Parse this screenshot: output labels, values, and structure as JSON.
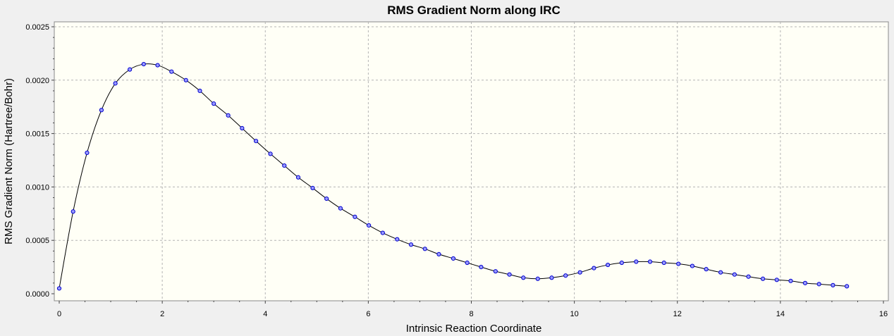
{
  "chart_data": {
    "type": "line",
    "title": "RMS Gradient Norm along IRC",
    "xlabel": "Intrinsic Reaction Coordinate",
    "ylabel": "RMS Gradient Norm (Hartree/Bohr)",
    "xlim": [
      0,
      16
    ],
    "ylim": [
      0,
      0.0025
    ],
    "x_ticks": [
      0,
      2,
      4,
      6,
      8,
      10,
      12,
      14,
      16
    ],
    "y_ticks": [
      "0.0000",
      "0.0005",
      "0.0010",
      "0.0015",
      "0.0020",
      "0.0025"
    ],
    "grid": true,
    "colors": {
      "plot_background": "#fffff6",
      "line": "#000000",
      "marker_fill": "#9999ff",
      "marker_stroke": "#0000cc",
      "grid": "#b4b4b4"
    },
    "series": [
      {
        "x": [
          0.0,
          0.27,
          0.54,
          0.82,
          1.09,
          1.37,
          1.64,
          1.91,
          2.18,
          2.46,
          2.73,
          3.0,
          3.28,
          3.55,
          3.82,
          4.1,
          4.37,
          4.64,
          4.92,
          5.19,
          5.46,
          5.74,
          6.01,
          6.28,
          6.56,
          6.83,
          7.1,
          7.37,
          7.65,
          7.92,
          8.19,
          8.47,
          8.74,
          9.01,
          9.29,
          9.56,
          9.83,
          10.11,
          10.38,
          10.65,
          10.92,
          11.2,
          11.47,
          11.74,
          12.02,
          12.29,
          12.56,
          12.84,
          13.11,
          13.38,
          13.66,
          13.93,
          14.2,
          14.48,
          14.75,
          15.02,
          15.29
        ],
        "y": [
          5e-05,
          0.00077,
          0.00132,
          0.00172,
          0.00197,
          0.0021,
          0.00215,
          0.00214,
          0.00208,
          0.002,
          0.0019,
          0.00178,
          0.00167,
          0.00155,
          0.00143,
          0.00131,
          0.0012,
          0.00109,
          0.00099,
          0.00089,
          0.0008,
          0.00072,
          0.00064,
          0.00057,
          0.00051,
          0.00046,
          0.00042,
          0.00037,
          0.00033,
          0.00029,
          0.00025,
          0.00021,
          0.00018,
          0.00015,
          0.00014,
          0.00015,
          0.00017,
          0.0002,
          0.00024,
          0.00027,
          0.00029,
          0.0003,
          0.0003,
          0.00029,
          0.00028,
          0.00026,
          0.00023,
          0.0002,
          0.00018,
          0.00016,
          0.00014,
          0.00013,
          0.00012,
          0.0001,
          9e-05,
          8e-05,
          7e-05
        ]
      }
    ]
  }
}
